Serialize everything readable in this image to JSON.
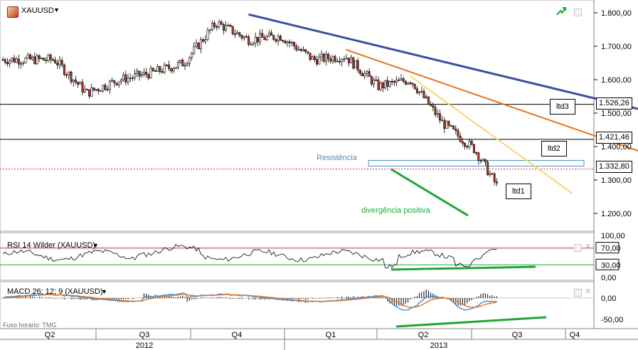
{
  "header": {
    "symbol": "XAUUSD",
    "symbol_icon": "gold-bar-icon",
    "trend_icon": "green-trend-arrow-icon"
  },
  "price_pane": {
    "y_ticks": [
      "1.800,00",
      "1.700,00",
      "1.600,00",
      "1.500,00",
      "1.400,00",
      "1.300,00",
      "1.200,00"
    ],
    "levels": [
      {
        "label": "1.526,26",
        "value": 1526.26,
        "style": "solid",
        "color": "#000000"
      },
      {
        "label": "1.421,46",
        "value": 1421.46,
        "style": "solid",
        "color": "#000000"
      },
      {
        "label": "1.332,80",
        "value": 1332.8,
        "style": "dotted",
        "color": "#d32f2f"
      }
    ],
    "annotations": {
      "resistance": "Resistência",
      "divergence": "divergência positiva",
      "ltd1": "ltd1",
      "ltd2": "ltd2",
      "ltd3": "ltd3"
    },
    "colors": {
      "ltd3": "#3b4fa3",
      "ltd2": "#e8731c",
      "ltd1": "#f5d76e",
      "divergence": "#1fa637",
      "resistance": "#4a90c8",
      "candle": "#000000",
      "candle_down": "#c0392b"
    }
  },
  "rsi_pane": {
    "title": "RSI 14 Wilder (XAUUSD)",
    "y_ticks": [
      "100,00",
      "70,00",
      "30,00",
      "0,00"
    ],
    "upper_level": 70,
    "lower_level": 30,
    "colors": {
      "line": "#000000",
      "upper": "#d32f2f",
      "lower": "#1fa637",
      "divergence": "#1fa637"
    }
  },
  "macd_pane": {
    "title": "MACD 26; 12; 9 (XAUUSD)",
    "y_ticks": [
      "0,00",
      "-50,00"
    ],
    "colors": {
      "macd": "#3a8ed6",
      "signal": "#e8731c",
      "histogram": "#000000",
      "divergence": "#1fa637"
    }
  },
  "timezone_label": "Fuso horário: TMG",
  "time_axis": {
    "quarters": [
      "Q2",
      "Q3",
      "Q4",
      "Q1",
      "Q2",
      "Q3",
      "Q4"
    ],
    "years": [
      "2012",
      "2013"
    ]
  },
  "chart_data": {
    "type": "candlestick",
    "symbol": "XAUUSD",
    "ylim": [
      1160,
      1830
    ],
    "x_periods": [
      "Q2 2012",
      "Q3 2012",
      "Q4 2012",
      "Q1 2013",
      "Q2 2013",
      "Q3 2013",
      "Q4 2013"
    ],
    "close_series": [
      {
        "period": "2012-04",
        "close": 1660
      },
      {
        "period": "2012-05",
        "close": 1560
      },
      {
        "period": "2012-06",
        "close": 1600
      },
      {
        "period": "2012-07",
        "close": 1620
      },
      {
        "period": "2012-08",
        "close": 1650
      },
      {
        "period": "2012-09",
        "close": 1770
      },
      {
        "period": "2012-10",
        "close": 1720
      },
      {
        "period": "2012-11",
        "close": 1730
      },
      {
        "period": "2012-12",
        "close": 1660
      },
      {
        "period": "2013-01",
        "close": 1670
      },
      {
        "period": "2013-02",
        "close": 1580
      },
      {
        "period": "2013-03",
        "close": 1600
      },
      {
        "period": "2013-04",
        "close": 1470
      },
      {
        "period": "2013-05",
        "close": 1390
      },
      {
        "period": "2013-06",
        "close": 1230
      },
      {
        "period": "2013-07",
        "close": 1320
      }
    ],
    "trendlines": [
      {
        "name": "ltd3",
        "from": {
          "period": "2012-10",
          "value": 1795
        },
        "to": {
          "period": "2013-11",
          "value": 1490
        }
      },
      {
        "name": "ltd2",
        "from": {
          "period": "2013-01",
          "value": 1690
        },
        "to": {
          "period": "2013-11",
          "value": 1355
        }
      },
      {
        "name": "ltd1",
        "from": {
          "period": "2013-03",
          "value": 1610
        },
        "to": {
          "period": "2013-08",
          "value": 1260
        }
      }
    ],
    "horizontal_levels": [
      1526.26,
      1421.46,
      1332.8
    ],
    "resistance_zone": [
      1335,
      1350
    ],
    "rsi_levels": [
      70,
      30
    ],
    "macd_ylim": [
      -60,
      20
    ]
  }
}
